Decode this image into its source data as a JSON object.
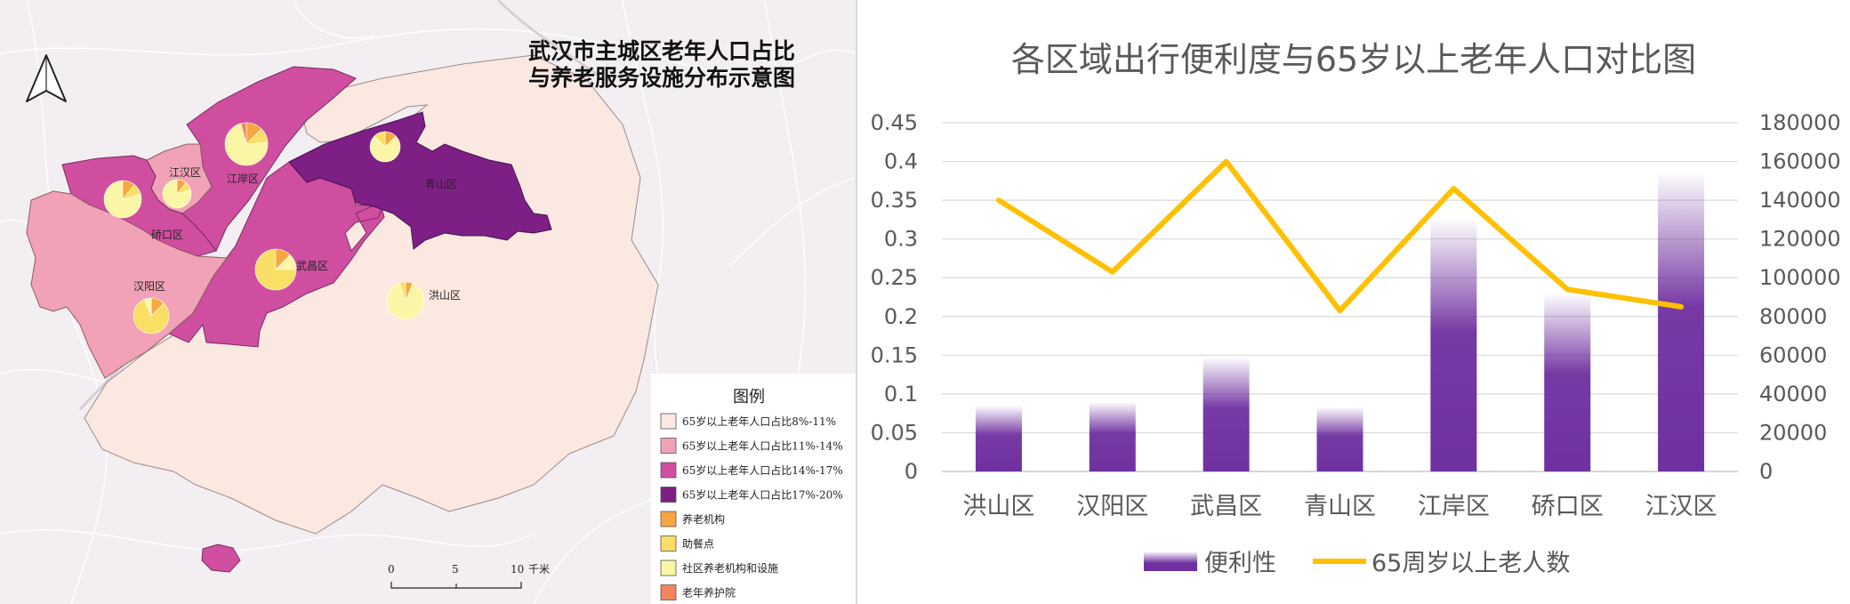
{
  "map": {
    "title_line1": "武汉市主城区老年人口占比",
    "title_line2": "与养老服务设施分布示意图",
    "district_labels": [
      "江汉区",
      "江岸区",
      "硚口区",
      "青山区",
      "汉阳区",
      "武昌区",
      "洪山区"
    ],
    "legend": {
      "title": "图例",
      "items": [
        {
          "label": "65岁以上老年人口占比8%-11%",
          "color": "#fbe9e1"
        },
        {
          "label": "65岁以上老年人口占比11%-14%",
          "color": "#f2a2b6"
        },
        {
          "label": "65岁以上老年人口占比14%-17%",
          "color": "#d04ea0"
        },
        {
          "label": "65岁以上老年人口占比17%-20%",
          "color": "#7e1f85"
        },
        {
          "label": "养老机构",
          "color": "#f8a640"
        },
        {
          "label": "助餐点",
          "color": "#f9df66"
        },
        {
          "label": "社区养老机构和设施",
          "color": "#fbf6a5"
        },
        {
          "label": "老年养护院",
          "color": "#f4845f"
        }
      ]
    },
    "scale": {
      "ticks": [
        "0",
        "5",
        "10"
      ],
      "unit": "千米"
    },
    "north_arrow": "north-arrow-icon"
  },
  "chart_data": {
    "type": "bar",
    "title": "各区域出行便利度与65岁以上老年人口对比图",
    "categories": [
      "洪山区",
      "汉阳区",
      "武昌区",
      "青山区",
      "江岸区",
      "硚口区",
      "江汉区"
    ],
    "y_left": {
      "ylim": [
        0,
        0.45
      ],
      "ticks": [
        "0",
        "0.05",
        "0.1",
        "0.15",
        "0.2",
        "0.25",
        "0.3",
        "0.35",
        "0.4",
        "0.45"
      ]
    },
    "y_right": {
      "ylim": [
        0,
        180000
      ],
      "ticks": [
        "0",
        "20000",
        "40000",
        "60000",
        "80000",
        "100000",
        "120000",
        "140000",
        "160000",
        "180000"
      ]
    },
    "series": [
      {
        "name": "便利性",
        "type": "bar",
        "axis": "left",
        "color": "#7030a0",
        "values": [
          0.085,
          0.09,
          0.148,
          0.083,
          0.327,
          0.23,
          0.388
        ]
      },
      {
        "name": "65周岁以上老人数",
        "type": "line",
        "axis": "right",
        "color": "#ffc000",
        "values": [
          140000,
          103000,
          160000,
          83000,
          146000,
          94000,
          85000
        ]
      }
    ],
    "grid": true,
    "legend_position": "bottom"
  }
}
